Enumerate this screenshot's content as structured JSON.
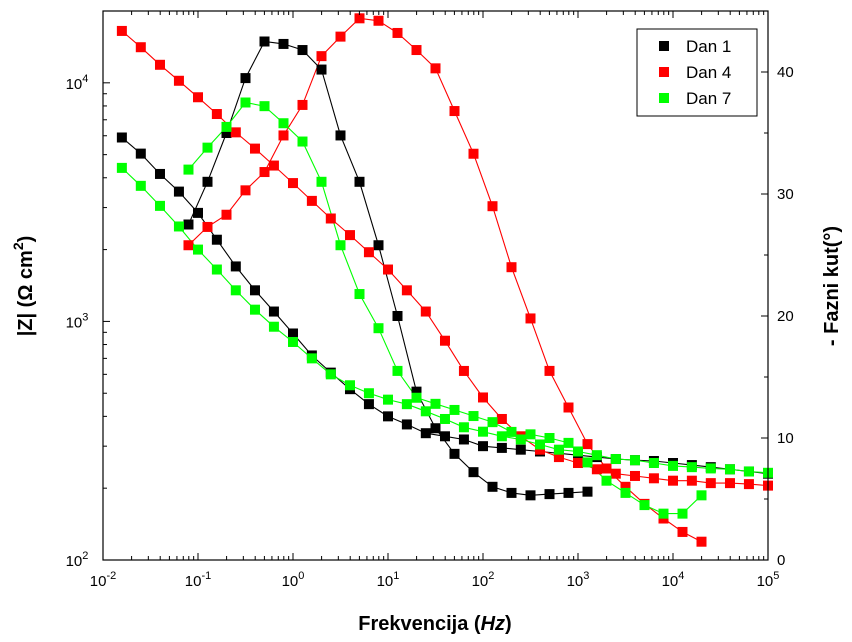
{
  "chart_data": {
    "type": "scatter",
    "x_scale": "log",
    "left_scale": "log",
    "xlabel_main": "Frekvencija (",
    "xlabel_unit": "Hz",
    "xlabel_close": ")",
    "ylabel_left_main": "|Z| (Ω cm",
    "ylabel_left_sup": "2",
    "ylabel_left_close": ")",
    "ylabel_right": "- Fazni kut(°)",
    "xlim": [
      0.01,
      100000
    ],
    "ylim_left": [
      100,
      20000
    ],
    "ylim_right": [
      0,
      45
    ],
    "x_ticks": [
      {
        "value": 0.01,
        "base": "10",
        "exp": "-2"
      },
      {
        "value": 0.1,
        "base": "10",
        "exp": "-1"
      },
      {
        "value": 1,
        "base": "10",
        "exp": "0"
      },
      {
        "value": 10,
        "base": "10",
        "exp": "1"
      },
      {
        "value": 100,
        "base": "10",
        "exp": "2"
      },
      {
        "value": 1000,
        "base": "10",
        "exp": "3"
      },
      {
        "value": 10000,
        "base": "10",
        "exp": "4"
      },
      {
        "value": 100000,
        "base": "10",
        "exp": "5"
      }
    ],
    "left_ticks": [
      {
        "value": 100,
        "base": "10",
        "exp": "2"
      },
      {
        "value": 1000,
        "base": "10",
        "exp": "3"
      },
      {
        "value": 10000,
        "base": "10",
        "exp": "4"
      }
    ],
    "right_ticks": [
      {
        "value": 0,
        "label": "0"
      },
      {
        "value": 10,
        "label": "10"
      },
      {
        "value": 20,
        "label": "20"
      },
      {
        "value": 30,
        "label": "30"
      },
      {
        "value": 40,
        "label": "40"
      }
    ],
    "grid": false,
    "legend_position": "top-right",
    "series": [
      {
        "name": "Dan 1",
        "color": "#000000",
        "impedance": {
          "x": [
            0.0158,
            0.025,
            0.0398,
            0.063,
            0.1,
            0.158,
            0.25,
            0.398,
            0.63,
            1,
            1.58,
            2.5,
            3.98,
            6.3,
            10,
            15.8,
            25,
            39.8,
            63,
            100,
            158,
            250,
            398,
            630,
            1000,
            1580,
            2500,
            3980,
            6300,
            10000,
            15800,
            25000,
            39800,
            63000,
            100000
          ],
          "y": [
            5900,
            5050,
            4150,
            3500,
            2850,
            2200,
            1700,
            1350,
            1100,
            890,
            720,
            610,
            520,
            450,
            400,
            370,
            340,
            330,
            320,
            300,
            295,
            290,
            285,
            280,
            275,
            270,
            265,
            262,
            260,
            255,
            250,
            245,
            240,
            235,
            230
          ]
        },
        "phase": {
          "x": [
            0.0794,
            0.1259,
            0.1995,
            0.3162,
            0.5012,
            0.7943,
            1.2589,
            1.9953,
            3.1623,
            5.0119,
            7.9433,
            12.589,
            19.953,
            31.623,
            50.119,
            79.433,
            125.89,
            199.53,
            316.23,
            501.19,
            794.33,
            1258.9
          ],
          "y": [
            27.5,
            31,
            35,
            39.5,
            42.5,
            42.3,
            41.8,
            40.2,
            34.8,
            31,
            25.8,
            20,
            13.8,
            10.8,
            8.7,
            7.2,
            6,
            5.5,
            5.3,
            5.4,
            5.5,
            5.6
          ]
        }
      },
      {
        "name": "Dan 4",
        "color": "#ff0000",
        "impedance": {
          "x": [
            0.0158,
            0.025,
            0.0398,
            0.063,
            0.1,
            0.158,
            0.25,
            0.398,
            0.63,
            1,
            1.58,
            2.5,
            3.98,
            6.3,
            10,
            15.8,
            25,
            39.8,
            63,
            100,
            158,
            250,
            398,
            630,
            1000,
            1580,
            2500,
            3980,
            6300,
            10000,
            15800,
            25000,
            39800,
            63000,
            100000
          ],
          "y": [
            16500,
            14100,
            11900,
            10200,
            8700,
            7400,
            6200,
            5300,
            4500,
            3800,
            3200,
            2700,
            2300,
            1950,
            1650,
            1350,
            1100,
            830,
            620,
            480,
            390,
            330,
            290,
            270,
            255,
            240,
            230,
            225,
            220,
            215,
            215,
            210,
            210,
            208,
            205
          ]
        },
        "phase": {
          "x": [
            0.0794,
            0.1259,
            0.1995,
            0.3162,
            0.5012,
            0.7943,
            1.2589,
            1.9953,
            3.1623,
            5.0119,
            7.9433,
            12.589,
            19.953,
            31.623,
            50.119,
            79.433,
            125.89,
            199.53,
            316.23,
            501.19,
            794.33,
            1258.9,
            1995.3,
            3162.3,
            5011.9,
            7943.3,
            12589,
            19953
          ],
          "y": [
            25.8,
            27.3,
            28.3,
            30.3,
            31.8,
            34.8,
            37.3,
            41.3,
            42.9,
            44.4,
            44.2,
            43.2,
            41.8,
            40.3,
            36.8,
            33.3,
            29,
            24,
            19.8,
            15.5,
            12.5,
            9.5,
            7.5,
            6,
            4.6,
            3.4,
            2.3,
            1.5
          ]
        }
      },
      {
        "name": "Dan 7",
        "color": "#00ff00",
        "impedance": {
          "x": [
            0.0158,
            0.025,
            0.0398,
            0.063,
            0.1,
            0.158,
            0.25,
            0.398,
            0.63,
            1,
            1.58,
            2.5,
            3.98,
            6.3,
            10,
            15.8,
            25,
            39.8,
            63,
            100,
            158,
            250,
            398,
            630,
            1000,
            1580,
            2500,
            3980,
            6300,
            10000,
            15800,
            25000,
            39800,
            63000,
            100000
          ],
          "y": [
            4400,
            3700,
            3050,
            2500,
            2000,
            1650,
            1350,
            1120,
            950,
            820,
            700,
            600,
            540,
            500,
            470,
            450,
            420,
            390,
            360,
            345,
            330,
            320,
            305,
            290,
            285,
            275,
            265,
            262,
            255,
            248,
            245,
            242,
            240,
            235,
            232
          ]
        },
        "phase": {
          "x": [
            0.0794,
            0.1259,
            0.1995,
            0.3162,
            0.5012,
            0.7943,
            1.2589,
            1.9953,
            3.1623,
            5.0119,
            7.9433,
            12.589,
            19.953,
            31.623,
            50.119,
            79.433,
            125.89,
            199.53,
            316.23,
            501.19,
            794.33,
            1258.9,
            1995.3,
            3162.3,
            5011.9,
            7943.3,
            12589,
            19953
          ],
          "y": [
            32,
            33.8,
            35.5,
            37.5,
            37.2,
            35.8,
            34.3,
            31,
            25.8,
            21.8,
            19,
            15.5,
            13.3,
            12.8,
            12.3,
            11.8,
            11.3,
            10.5,
            10.3,
            10,
            9.6,
            8,
            6.5,
            5.5,
            4.5,
            3.8,
            3.8,
            5.3
          ]
        }
      }
    ]
  }
}
